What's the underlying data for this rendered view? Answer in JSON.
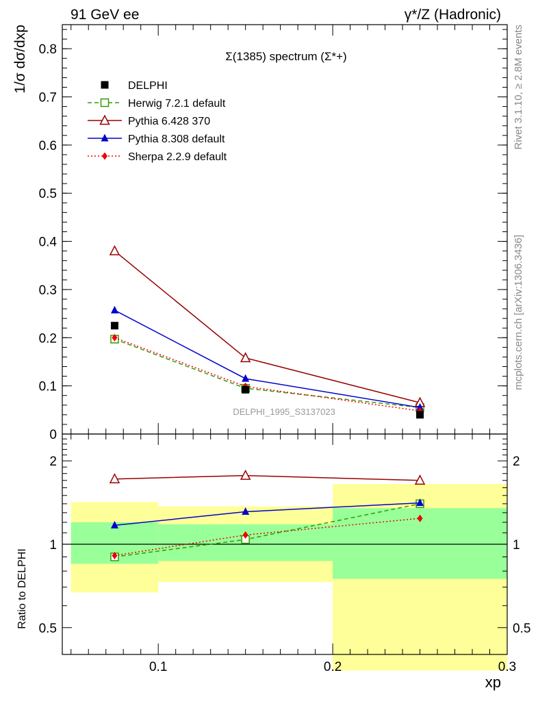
{
  "header": {
    "left": "91 GeV ee",
    "right": "γ*/Z (Hadronic)"
  },
  "side_labels": {
    "rivet": "Rivet 3.1.10, ≥ 2.8M events",
    "mcplots": "mcplots.cern.ch [arXiv:1306.3436]"
  },
  "watermark": "DELPHI_1995_S3137023",
  "chart_data": [
    {
      "type": "line",
      "title": "Σ(1385) spectrum (Σ*+)",
      "xlabel": "xp",
      "ylabel": "1/σ dσ/dxp",
      "xlim": [
        0.045,
        0.3
      ],
      "ylim": [
        0,
        0.85
      ],
      "y_ticks": [
        0,
        0.1,
        0.2,
        0.3,
        0.4,
        0.5,
        0.6,
        0.7,
        0.8
      ],
      "x": [
        0.075,
        0.15,
        0.25
      ],
      "legend_position": "top-left",
      "data": {
        "name": "DELPHI",
        "values": [
          0.225,
          0.092,
          0.04
        ]
      },
      "series": [
        {
          "name": "Herwig 7.2.1 default",
          "values": [
            0.197,
            0.095,
            0.055
          ],
          "color": "#339900",
          "marker": "open-square",
          "style": "dashed"
        },
        {
          "name": "Pythia 6.428 370",
          "values": [
            0.38,
            0.158,
            0.065
          ],
          "color": "#990000",
          "marker": "open-triangle",
          "style": "solid"
        },
        {
          "name": "Pythia 8.308 default",
          "values": [
            0.257,
            0.115,
            0.055
          ],
          "color": "#0000cc",
          "marker": "filled-triangle",
          "style": "solid"
        },
        {
          "name": "Sherpa 2.2.9 default",
          "values": [
            0.2,
            0.099,
            0.048
          ],
          "color": "#ee0000",
          "marker": "filled-diamond",
          "style": "dotted"
        }
      ]
    },
    {
      "type": "line",
      "ylabel": "Ratio to DELPHI",
      "xlabel": "xp",
      "scale": "log",
      "xlim": [
        0.045,
        0.3
      ],
      "ylim": [
        0.4,
        2.5
      ],
      "y_ticks": [
        0.5,
        1,
        2
      ],
      "x_ticks": [
        0.1,
        0.2,
        0.3
      ],
      "x": [
        0.075,
        0.15,
        0.25
      ],
      "uncertainty_bands": [
        {
          "x_range": [
            0.05,
            0.1
          ],
          "inner": [
            0.85,
            1.2
          ],
          "outer": [
            0.67,
            1.42
          ]
        },
        {
          "x_range": [
            0.1,
            0.2
          ],
          "inner": [
            0.87,
            1.18
          ],
          "outer": [
            0.73,
            1.37
          ]
        },
        {
          "x_range": [
            0.2,
            0.3
          ],
          "inner": [
            0.75,
            1.35
          ],
          "outer": [
            0.35,
            1.65
          ]
        }
      ],
      "series": [
        {
          "name": "Herwig 7.2.1 default",
          "values": [
            0.9,
            1.04,
            1.4
          ],
          "color": "#339900",
          "marker": "open-square",
          "style": "dashed"
        },
        {
          "name": "Pythia 6.428 370",
          "values": [
            1.72,
            1.77,
            1.7
          ],
          "color": "#990000",
          "marker": "open-triangle",
          "style": "solid"
        },
        {
          "name": "Pythia 8.308 default",
          "values": [
            1.17,
            1.31,
            1.41
          ],
          "color": "#0000cc",
          "marker": "filled-triangle",
          "style": "solid"
        },
        {
          "name": "Sherpa 2.2.9 default",
          "values": [
            0.91,
            1.08,
            1.24
          ],
          "color": "#ee0000",
          "marker": "filled-diamond",
          "style": "dotted"
        }
      ],
      "band_colors": {
        "inner": "#99ff99",
        "outer": "#ffff99"
      }
    }
  ]
}
